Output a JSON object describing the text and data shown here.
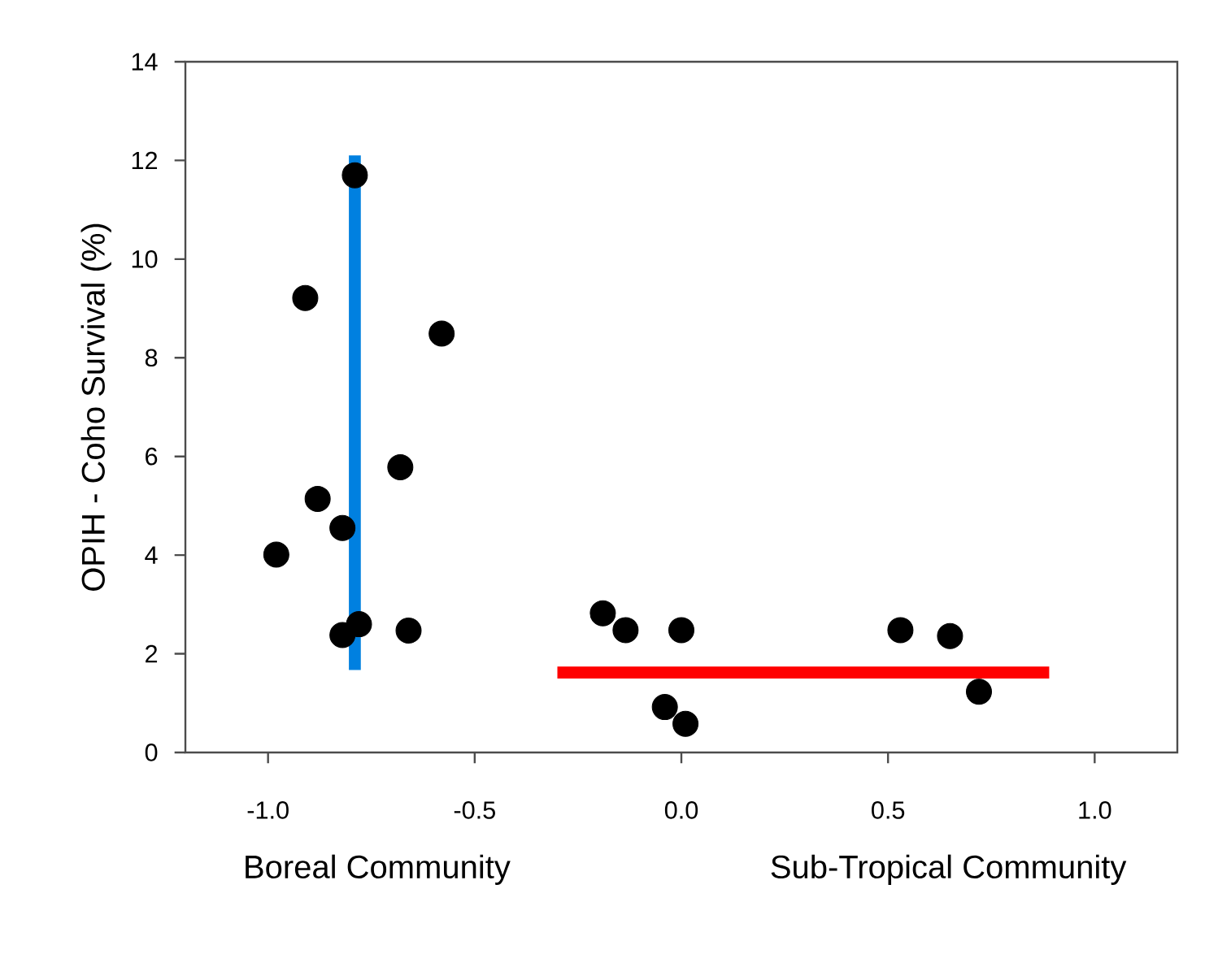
{
  "chart_data": {
    "type": "scatter",
    "ylabel": "OPIH - Coho Survival (%)",
    "annotations": [
      "Boreal Community",
      "Sub-Tropical Community"
    ],
    "xlim": [
      -1.2,
      1.2
    ],
    "ylim": [
      0,
      14
    ],
    "xticks": [
      {
        "value": -1,
        "label": "-1.0"
      },
      {
        "value": -0.5,
        "label": "-0.5"
      },
      {
        "value": 0,
        "label": "0.0"
      },
      {
        "value": 0.5,
        "label": "0.5"
      },
      {
        "value": 1,
        "label": "1.0"
      }
    ],
    "yticks": [
      0,
      2,
      4,
      6,
      8,
      10,
      12,
      14
    ],
    "series": [
      {
        "type": "line",
        "marker": "none",
        "color": "#0080e0",
        "x": [
          -0.79,
          -0.79
        ],
        "values": [
          1.67,
          12.1
        ]
      },
      {
        "type": "line",
        "marker": "none",
        "color": "#ff0000",
        "x": [
          -0.3,
          0.89
        ],
        "values": [
          1.62,
          1.62
        ]
      },
      {
        "type": "scatter",
        "marker": "circle",
        "color": "#000000",
        "x": [
          -0.98,
          -0.91,
          -0.88,
          -0.82,
          -0.79,
          -0.68,
          -0.58,
          -0.82,
          -0.78,
          -0.66,
          -0.19,
          -0.135,
          0.0,
          -0.04,
          0.01,
          0.53,
          0.65,
          0.72
        ],
        "values": [
          4.01,
          9.21,
          5.14,
          4.55,
          11.7,
          5.78,
          8.49,
          2.38,
          2.6,
          2.47,
          2.82,
          2.48,
          2.48,
          0.92,
          0.58,
          2.48,
          2.36,
          1.23
        ]
      }
    ]
  }
}
